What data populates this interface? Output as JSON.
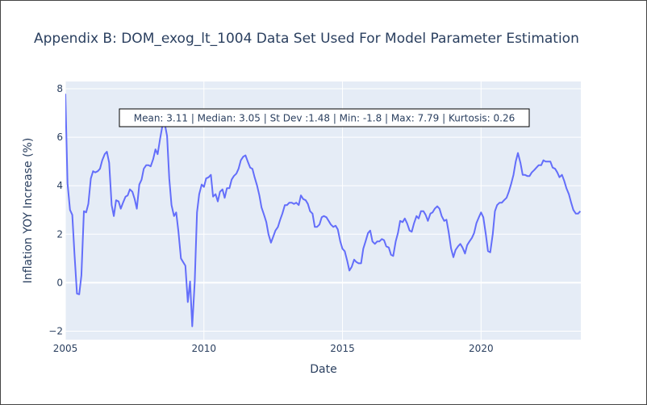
{
  "chart_data": {
    "type": "line",
    "title": "Appendix B: DOM_exog_lt_1004 Data Set Used For Model Parameter Estimation",
    "xlabel": "Date",
    "ylabel": "Inflation YOY Increase (%)",
    "xlim": [
      2005.0,
      2023.6
    ],
    "ylim": [
      -2.35,
      8.3
    ],
    "x_ticks": [
      2005,
      2010,
      2015,
      2020
    ],
    "x_tick_labels": [
      "2005",
      "2010",
      "2015",
      "2020"
    ],
    "y_ticks": [
      -2,
      0,
      2,
      4,
      6,
      8
    ],
    "y_tick_labels": [
      "−2",
      "0",
      "2",
      "4",
      "6",
      "8"
    ],
    "grid": true,
    "legend": "none",
    "line_color": "#636efa",
    "plot_bgcolor": "#e5ecf6",
    "annotation": "Mean: 3.11 | Median: 3.05 | St Dev :1.48 | Min: -1.8 | Max: 7.79 | Kurtosis: 0.26",
    "series": [
      {
        "x": [
          2005.0,
          2005.08,
          2005.17,
          2005.25,
          2005.33,
          2005.42,
          2005.5,
          2005.58,
          2005.67,
          2005.75,
          2005.83,
          2005.92,
          2006.0,
          2006.08,
          2006.17,
          2006.25,
          2006.33,
          2006.42,
          2006.5,
          2006.58,
          2006.67,
          2006.75,
          2006.83,
          2006.92,
          2007.0,
          2007.08,
          2007.17,
          2007.25,
          2007.33,
          2007.42,
          2007.5,
          2007.58,
          2007.67,
          2007.75,
          2007.83,
          2007.92,
          2008.0,
          2008.08,
          2008.17,
          2008.25,
          2008.33,
          2008.42,
          2008.5,
          2008.58,
          2008.67,
          2008.75,
          2008.83,
          2008.92,
          2009.0,
          2009.08,
          2009.17,
          2009.25,
          2009.33,
          2009.42,
          2009.5,
          2009.58,
          2009.67,
          2009.75,
          2009.83,
          2009.92,
          2010.0,
          2010.08,
          2010.17,
          2010.25,
          2010.33,
          2010.42,
          2010.5,
          2010.58,
          2010.67,
          2010.75,
          2010.83,
          2010.92,
          2011.0,
          2011.08,
          2011.17,
          2011.25,
          2011.33,
          2011.42,
          2011.5,
          2011.58,
          2011.67,
          2011.75,
          2011.83,
          2011.92,
          2012.0,
          2012.08,
          2012.17,
          2012.25,
          2012.33,
          2012.42,
          2012.5,
          2012.58,
          2012.67,
          2012.75,
          2012.83,
          2012.92,
          2013.0,
          2013.08,
          2013.17,
          2013.25,
          2013.33,
          2013.42,
          2013.5,
          2013.58,
          2013.67,
          2013.75,
          2013.83,
          2013.92,
          2014.0,
          2014.08,
          2014.17,
          2014.25,
          2014.33,
          2014.42,
          2014.5,
          2014.58,
          2014.67,
          2014.75,
          2014.83,
          2014.92,
          2015.0,
          2015.08,
          2015.17,
          2015.25,
          2015.33,
          2015.42,
          2015.5,
          2015.58,
          2015.67,
          2015.75,
          2015.83,
          2015.92,
          2016.0,
          2016.08,
          2016.17,
          2016.25,
          2016.33,
          2016.42,
          2016.5,
          2016.58,
          2016.67,
          2016.75,
          2016.83,
          2016.92,
          2017.0,
          2017.08,
          2017.17,
          2017.25,
          2017.33,
          2017.42,
          2017.5,
          2017.58,
          2017.67,
          2017.75,
          2017.83,
          2017.92,
          2018.0,
          2018.08,
          2018.17,
          2018.25,
          2018.33,
          2018.42,
          2018.5,
          2018.58,
          2018.67,
          2018.75,
          2018.83,
          2018.92,
          2019.0,
          2019.08,
          2019.17,
          2019.25,
          2019.33,
          2019.42,
          2019.5,
          2019.58,
          2019.67,
          2019.75,
          2019.83,
          2019.92,
          2020.0,
          2020.08,
          2020.17,
          2020.25,
          2020.33,
          2020.42,
          2020.5,
          2020.58,
          2020.67,
          2020.75,
          2020.83,
          2020.92,
          2021.0,
          2021.08,
          2021.17,
          2021.25,
          2021.33,
          2021.42,
          2021.5,
          2021.58,
          2021.67,
          2021.75,
          2021.83,
          2021.92,
          2022.0,
          2022.08,
          2022.17,
          2022.25,
          2022.33,
          2022.42,
          2022.5,
          2022.58,
          2022.67,
          2022.75,
          2022.83,
          2022.92,
          2023.0,
          2023.08,
          2023.17,
          2023.25,
          2023.33,
          2023.42,
          2023.5,
          2023.58
        ],
        "y": [
          7.79,
          4.1,
          3.0,
          2.8,
          1.2,
          -0.45,
          -0.48,
          0.3,
          2.95,
          2.9,
          3.25,
          4.3,
          4.6,
          4.55,
          4.6,
          4.7,
          5.05,
          5.3,
          5.4,
          4.95,
          3.2,
          2.75,
          3.4,
          3.35,
          3.05,
          3.3,
          3.55,
          3.6,
          3.85,
          3.75,
          3.45,
          3.05,
          4.05,
          4.25,
          4.7,
          4.85,
          4.85,
          4.8,
          5.1,
          5.5,
          5.3,
          5.95,
          6.45,
          6.6,
          6.05,
          4.3,
          3.2,
          2.75,
          2.9,
          2.1,
          1.0,
          0.85,
          0.7,
          -0.8,
          0.05,
          -1.8,
          0.05,
          2.9,
          3.65,
          4.05,
          3.95,
          4.3,
          4.35,
          4.45,
          3.55,
          3.65,
          3.35,
          3.75,
          3.85,
          3.5,
          3.9,
          3.9,
          4.25,
          4.4,
          4.5,
          4.7,
          5.05,
          5.2,
          5.25,
          5.0,
          4.75,
          4.7,
          4.35,
          4.0,
          3.6,
          3.1,
          2.8,
          2.5,
          2.0,
          1.65,
          1.9,
          2.15,
          2.3,
          2.6,
          2.85,
          3.2,
          3.2,
          3.3,
          3.3,
          3.25,
          3.3,
          3.2,
          3.6,
          3.45,
          3.4,
          3.25,
          2.95,
          2.85,
          2.3,
          2.3,
          2.4,
          2.7,
          2.75,
          2.7,
          2.55,
          2.4,
          2.3,
          2.35,
          2.2,
          1.7,
          1.4,
          1.3,
          0.9,
          0.5,
          0.65,
          0.95,
          0.85,
          0.8,
          0.8,
          1.4,
          1.7,
          2.05,
          2.15,
          1.7,
          1.6,
          1.7,
          1.7,
          1.8,
          1.75,
          1.5,
          1.45,
          1.15,
          1.1,
          1.7,
          2.05,
          2.55,
          2.5,
          2.65,
          2.45,
          2.15,
          2.1,
          2.45,
          2.75,
          2.65,
          2.95,
          2.95,
          2.8,
          2.55,
          2.85,
          2.9,
          3.05,
          3.15,
          3.05,
          2.75,
          2.55,
          2.6,
          2.1,
          1.4,
          1.05,
          1.35,
          1.5,
          1.6,
          1.45,
          1.2,
          1.55,
          1.7,
          1.85,
          2.05,
          2.45,
          2.7,
          2.9,
          2.7,
          2.0,
          1.3,
          1.25,
          2.0,
          2.95,
          3.2,
          3.3,
          3.3,
          3.4,
          3.5,
          3.75,
          4.05,
          4.45,
          5.0,
          5.35,
          4.95,
          4.45,
          4.45,
          4.4,
          4.4,
          4.55,
          4.65,
          4.75,
          4.85,
          4.85,
          5.05,
          5.0,
          5.0,
          5.0,
          4.75,
          4.7,
          4.55,
          4.35,
          4.45,
          4.2,
          3.9,
          3.65,
          3.3,
          3.0,
          2.85,
          2.85,
          2.95
        ]
      }
    ]
  }
}
